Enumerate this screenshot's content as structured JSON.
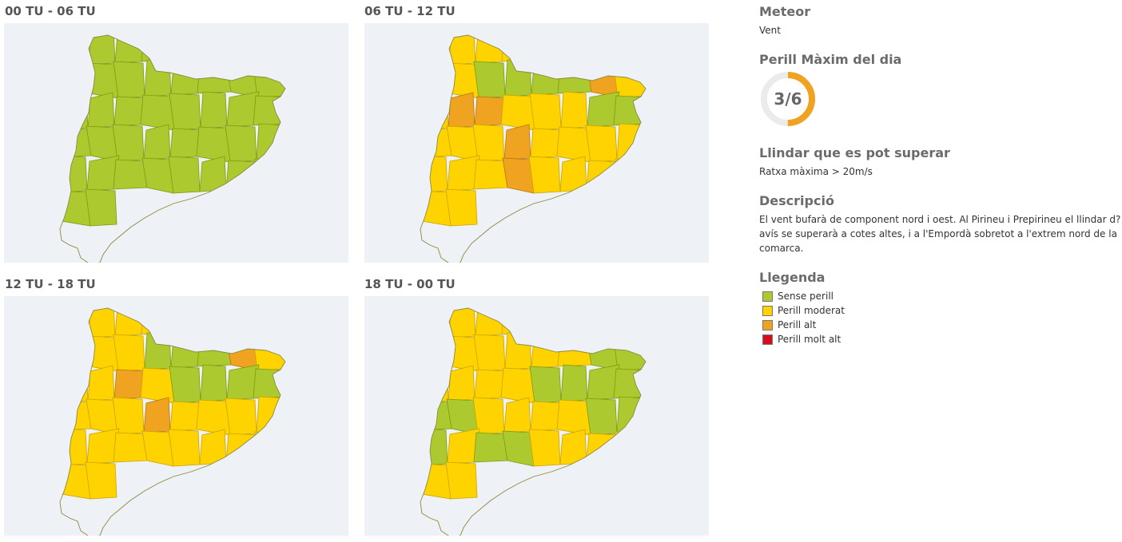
{
  "panels": [
    {
      "title": "00 TU - 06 TU",
      "levels": [
        0,
        0,
        0,
        0,
        0,
        0,
        0,
        0,
        0,
        0,
        0,
        0,
        0,
        0,
        0,
        0,
        0,
        0,
        0,
        0,
        0,
        0,
        0,
        0,
        0,
        0,
        0,
        0,
        0,
        0,
        0,
        0,
        0,
        0,
        0,
        0,
        0,
        0,
        0,
        0,
        0,
        0
      ]
    },
    {
      "title": "06 TU - 12 TU",
      "levels": [
        1,
        1,
        1,
        1,
        1,
        1,
        1,
        1,
        1,
        1,
        0,
        0,
        0,
        0,
        2,
        1,
        1,
        2,
        2,
        1,
        1,
        1,
        0,
        0,
        1,
        1,
        1,
        2,
        1,
        1,
        1,
        1,
        1,
        1,
        1,
        2,
        1,
        1,
        1,
        1,
        1,
        1
      ]
    },
    {
      "title": "12 TU - 18 TU",
      "levels": [
        1,
        1,
        1,
        1,
        1,
        1,
        1,
        1,
        1,
        1,
        1,
        0,
        0,
        0,
        2,
        1,
        1,
        1,
        2,
        1,
        0,
        0,
        0,
        0,
        1,
        1,
        1,
        2,
        1,
        1,
        1,
        1,
        1,
        1,
        1,
        1,
        1,
        1,
        1,
        1,
        1,
        1
      ]
    },
    {
      "title": "18 TU - 00 TU",
      "levels": [
        1,
        1,
        1,
        1,
        1,
        1,
        1,
        1,
        1,
        1,
        1,
        1,
        1,
        1,
        0,
        0,
        1,
        1,
        1,
        1,
        0,
        0,
        0,
        0,
        0,
        0,
        1,
        1,
        1,
        1,
        0,
        0,
        0,
        1,
        0,
        0,
        1,
        1,
        1,
        1,
        1,
        1
      ]
    }
  ],
  "colors": {
    "level0": "#acc92f",
    "level1": "#fed300",
    "level2": "#f0a221",
    "level3": "#d90c1f",
    "border0": "#7d9a10",
    "border1": "#c9a300",
    "border2": "#b8760a",
    "gauge_track": "#ebebeb",
    "gauge_fill": "#f0a221",
    "map_bg": "#eef1f6"
  },
  "info": {
    "meteor_title": "Meteor",
    "meteor_value": "Vent",
    "perill_title": "Perill Màxim del dia",
    "perill_value": "3/6",
    "perill_fraction": 0.5,
    "llindar_title": "Llindar que es pot superar",
    "llindar_value": "Ratxa màxima > 20m/s",
    "descripcio_title": "Descripció",
    "descripcio_lines": [
      "El vent bufarà de component nord i oest. Al Pirineu i Prepirineu el llindar d?",
      "avís se superarà a cotes altes, i a l'Empordà sobretot a l'extrem nord de la",
      "comarca."
    ],
    "llegenda_title": "Llegenda",
    "legend": [
      {
        "label": "Sense perill",
        "color": "#acc92f"
      },
      {
        "label": "Perill moderat",
        "color": "#fed300"
      },
      {
        "label": "Perill alt",
        "color": "#f0a221"
      },
      {
        "label": "Perill molt alt",
        "color": "#d90c1f"
      }
    ]
  }
}
